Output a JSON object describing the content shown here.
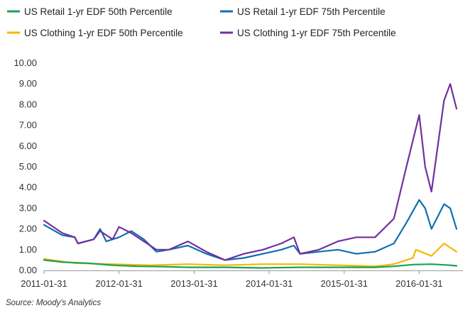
{
  "chart_data": {
    "type": "line",
    "title": "",
    "xlabel": "",
    "ylabel": "",
    "ylim": [
      0,
      10
    ],
    "yticks": [
      "0.00",
      "1.00",
      "2.00",
      "3.00",
      "4.00",
      "5.00",
      "6.00",
      "7.00",
      "8.00",
      "9.00",
      "10.00"
    ],
    "xticks": [
      "2011-01-31",
      "2012-01-31",
      "2013-01-31",
      "2014-01-31",
      "2015-01-31",
      "2016-01-31"
    ],
    "legend_position": "top",
    "grid": false,
    "source": "Source: Moody's Analytics",
    "series": [
      {
        "name": "US Retail 1-yr EDF 50th Percentile",
        "color": "#1aa157",
        "points": [
          [
            "2011-01-31",
            0.5
          ],
          [
            "2011-04-30",
            0.4
          ],
          [
            "2011-08-31",
            0.35
          ],
          [
            "2011-12-31",
            0.25
          ],
          [
            "2012-04-30",
            0.2
          ],
          [
            "2012-08-31",
            0.18
          ],
          [
            "2012-12-31",
            0.15
          ],
          [
            "2013-06-30",
            0.15
          ],
          [
            "2013-12-31",
            0.12
          ],
          [
            "2014-06-30",
            0.15
          ],
          [
            "2014-12-31",
            0.15
          ],
          [
            "2015-06-30",
            0.15
          ],
          [
            "2015-09-30",
            0.2
          ],
          [
            "2015-12-31",
            0.28
          ],
          [
            "2016-03-31",
            0.3
          ],
          [
            "2016-06-30",
            0.25
          ],
          [
            "2016-07-31",
            0.22
          ]
        ]
      },
      {
        "name": "US Retail 1-yr EDF 75th Percentile",
        "color": "#0f6fb3",
        "points": [
          [
            "2011-01-31",
            2.2
          ],
          [
            "2011-04-30",
            1.7
          ],
          [
            "2011-06-30",
            1.6
          ],
          [
            "2011-07-15",
            1.3
          ],
          [
            "2011-09-30",
            1.5
          ],
          [
            "2011-10-31",
            2.0
          ],
          [
            "2011-11-30",
            1.4
          ],
          [
            "2012-01-31",
            1.6
          ],
          [
            "2012-03-31",
            1.9
          ],
          [
            "2012-05-31",
            1.5
          ],
          [
            "2012-07-31",
            0.9
          ],
          [
            "2012-09-30",
            1.0
          ],
          [
            "2012-12-31",
            1.2
          ],
          [
            "2013-03-31",
            0.8
          ],
          [
            "2013-06-30",
            0.5
          ],
          [
            "2013-09-30",
            0.6
          ],
          [
            "2013-12-31",
            0.8
          ],
          [
            "2014-03-31",
            1.0
          ],
          [
            "2014-05-31",
            1.2
          ],
          [
            "2014-06-30",
            0.8
          ],
          [
            "2014-09-30",
            0.9
          ],
          [
            "2014-12-31",
            1.0
          ],
          [
            "2015-03-31",
            0.8
          ],
          [
            "2015-06-30",
            0.9
          ],
          [
            "2015-09-30",
            1.3
          ],
          [
            "2015-11-30",
            2.3
          ],
          [
            "2016-01-31",
            3.4
          ],
          [
            "2016-02-29",
            3.0
          ],
          [
            "2016-03-31",
            2.0
          ],
          [
            "2016-05-31",
            3.2
          ],
          [
            "2016-06-30",
            3.0
          ],
          [
            "2016-07-31",
            2.0
          ]
        ]
      },
      {
        "name": "US Clothing 1-yr EDF 50th Percentile",
        "color": "#f5b800",
        "points": [
          [
            "2011-01-31",
            0.55
          ],
          [
            "2011-06-30",
            0.35
          ],
          [
            "2011-12-31",
            0.3
          ],
          [
            "2012-06-30",
            0.25
          ],
          [
            "2012-12-31",
            0.3
          ],
          [
            "2013-06-30",
            0.25
          ],
          [
            "2013-12-31",
            0.3
          ],
          [
            "2014-06-30",
            0.3
          ],
          [
            "2014-12-31",
            0.25
          ],
          [
            "2015-06-30",
            0.2
          ],
          [
            "2015-09-30",
            0.3
          ],
          [
            "2015-12-31",
            0.6
          ],
          [
            "2016-01-15",
            1.0
          ],
          [
            "2016-03-31",
            0.7
          ],
          [
            "2016-05-31",
            1.3
          ],
          [
            "2016-06-30",
            1.1
          ],
          [
            "2016-07-31",
            0.9
          ]
        ]
      },
      {
        "name": "US Clothing 1-yr EDF 75th Percentile",
        "color": "#7030a0",
        "points": [
          [
            "2011-01-31",
            2.4
          ],
          [
            "2011-04-30",
            1.8
          ],
          [
            "2011-06-30",
            1.6
          ],
          [
            "2011-07-15",
            1.3
          ],
          [
            "2011-09-30",
            1.5
          ],
          [
            "2011-10-31",
            1.9
          ],
          [
            "2011-12-31",
            1.5
          ],
          [
            "2012-01-31",
            2.1
          ],
          [
            "2012-03-31",
            1.8
          ],
          [
            "2012-05-31",
            1.4
          ],
          [
            "2012-07-31",
            1.0
          ],
          [
            "2012-09-30",
            1.0
          ],
          [
            "2012-12-31",
            1.4
          ],
          [
            "2013-03-31",
            0.9
          ],
          [
            "2013-06-30",
            0.5
          ],
          [
            "2013-09-30",
            0.8
          ],
          [
            "2013-12-31",
            1.0
          ],
          [
            "2014-03-31",
            1.3
          ],
          [
            "2014-05-31",
            1.6
          ],
          [
            "2014-06-30",
            0.8
          ],
          [
            "2014-09-30",
            1.0
          ],
          [
            "2014-12-31",
            1.4
          ],
          [
            "2015-03-31",
            1.6
          ],
          [
            "2015-06-30",
            1.6
          ],
          [
            "2015-09-30",
            2.5
          ],
          [
            "2015-11-30",
            5.0
          ],
          [
            "2016-01-31",
            7.5
          ],
          [
            "2016-02-29",
            5.0
          ],
          [
            "2016-03-31",
            3.8
          ],
          [
            "2016-05-31",
            8.2
          ],
          [
            "2016-06-30",
            9.0
          ],
          [
            "2016-07-31",
            7.8
          ]
        ]
      }
    ]
  }
}
